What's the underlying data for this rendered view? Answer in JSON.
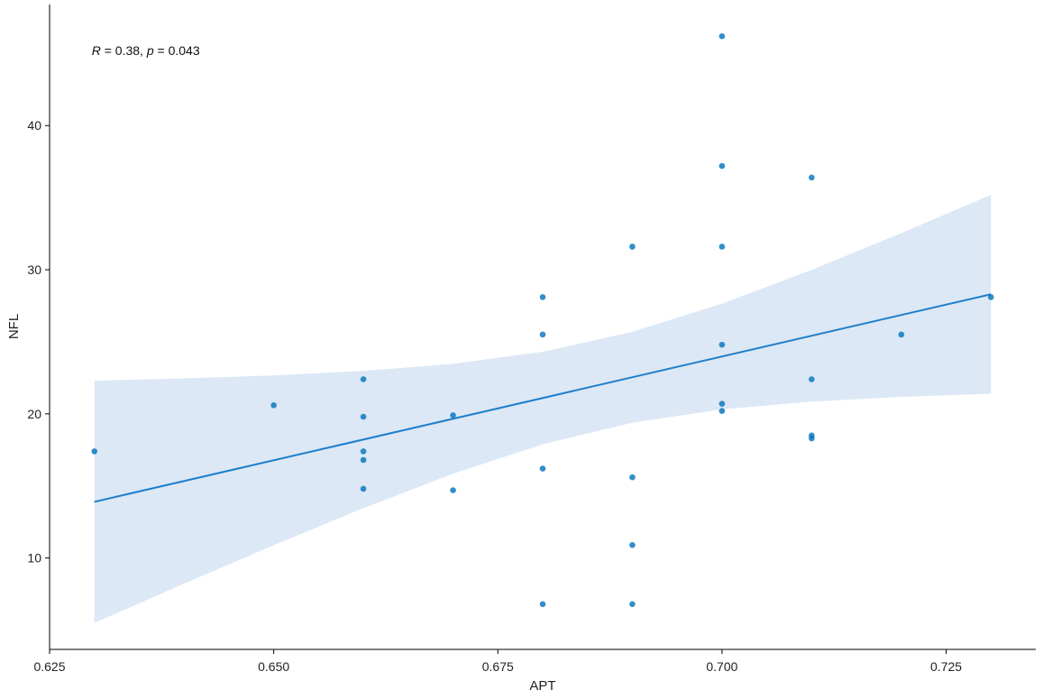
{
  "chart_data": {
    "type": "scatter",
    "title": "",
    "xlabel": "APT",
    "ylabel": "NFL",
    "xlim": [
      0.625,
      0.735
    ],
    "ylim": [
      3.66,
      48.4
    ],
    "grid": false,
    "x_ticks": [
      0.625,
      0.65,
      0.675,
      0.7,
      0.725
    ],
    "x_tick_labels": [
      "0.625",
      "0.650",
      "0.675",
      "0.700",
      "0.725"
    ],
    "y_ticks": [
      10,
      20,
      30,
      40
    ],
    "y_tick_labels": [
      "10",
      "20",
      "30",
      "40"
    ],
    "annotation": {
      "r_label": "R",
      "r_value": " = 0.38, ",
      "p_label": "p",
      "p_value": " = 0.043",
      "x": 0.63,
      "y": 45.2
    },
    "colors": {
      "points": "#0072BD",
      "line": "#1F7FCC",
      "ribbon": "#DCE8F5"
    },
    "points": [
      [
        0.63,
        17.4
      ],
      [
        0.65,
        20.6
      ],
      [
        0.66,
        22.4
      ],
      [
        0.66,
        19.8
      ],
      [
        0.66,
        17.4
      ],
      [
        0.66,
        16.8
      ],
      [
        0.66,
        14.8
      ],
      [
        0.67,
        19.9
      ],
      [
        0.67,
        14.7
      ],
      [
        0.68,
        28.1
      ],
      [
        0.68,
        25.5
      ],
      [
        0.68,
        16.2
      ],
      [
        0.68,
        6.8
      ],
      [
        0.69,
        31.6
      ],
      [
        0.69,
        15.6
      ],
      [
        0.69,
        10.9
      ],
      [
        0.69,
        6.8
      ],
      [
        0.7,
        46.2
      ],
      [
        0.7,
        37.2
      ],
      [
        0.7,
        31.6
      ],
      [
        0.7,
        24.8
      ],
      [
        0.7,
        20.7
      ],
      [
        0.7,
        20.2
      ],
      [
        0.71,
        36.4
      ],
      [
        0.71,
        22.4
      ],
      [
        0.71,
        18.5
      ],
      [
        0.71,
        18.3
      ],
      [
        0.72,
        25.5
      ],
      [
        0.73,
        28.1
      ]
    ],
    "fit": {
      "x": [
        0.63,
        0.73
      ],
      "y": [
        13.9,
        28.3
      ]
    },
    "ribbon": {
      "x": [
        0.63,
        0.64,
        0.65,
        0.66,
        0.67,
        0.68,
        0.69,
        0.7,
        0.71,
        0.72,
        0.73
      ],
      "lower": [
        5.5,
        8.22,
        10.89,
        13.46,
        15.85,
        17.89,
        19.39,
        20.31,
        20.85,
        21.18,
        21.4
      ],
      "upper": [
        22.3,
        22.46,
        22.67,
        22.98,
        23.47,
        24.31,
        25.69,
        27.65,
        29.99,
        32.54,
        35.2
      ]
    }
  }
}
